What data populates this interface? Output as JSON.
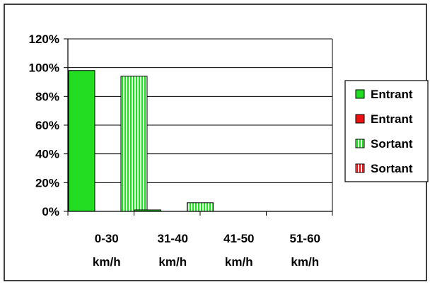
{
  "chart_data": {
    "type": "bar",
    "categories": [
      [
        "0-30",
        "km/h"
      ],
      [
        "31-40",
        "km/h"
      ],
      [
        "41-50",
        "km/h"
      ],
      [
        "51-60",
        "km/h"
      ]
    ],
    "series": [
      {
        "name": "Entrant",
        "color": "#22DD22",
        "pattern": "solid",
        "values": [
          98,
          1,
          0,
          0
        ]
      },
      {
        "name": "Entrant",
        "color": "#EE1111",
        "pattern": "solid",
        "values": [
          0,
          0,
          0,
          0
        ]
      },
      {
        "name": "Sortant",
        "color": "#22DD22",
        "pattern": "vertical-stripes",
        "values": [
          94,
          6,
          0,
          0
        ]
      },
      {
        "name": "Sortant",
        "color": "#EE1111",
        "pattern": "vertical-stripes",
        "values": [
          0,
          0,
          0,
          0
        ]
      }
    ],
    "ylim": [
      0,
      120
    ],
    "yticks": [
      "0%",
      "20%",
      "40%",
      "60%",
      "80%",
      "100%",
      "120%"
    ],
    "grid": true,
    "legend_position": "right",
    "title": "",
    "xlabel": "",
    "ylabel": ""
  }
}
